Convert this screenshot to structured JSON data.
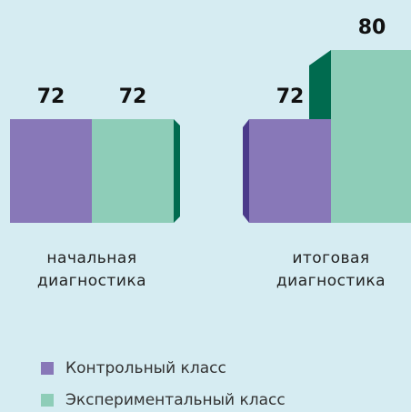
{
  "chart_data": {
    "type": "bar",
    "categories": [
      "начальная диагностика",
      "итоговая диагностика"
    ],
    "series": [
      {
        "name": "Контрольный класс",
        "color": "#8878b8",
        "values": [
          72,
          72
        ]
      },
      {
        "name": "Экспериментальный класс",
        "color": "#8ecdb8",
        "values": [
          72,
          80
        ]
      }
    ],
    "ylim": [
      60,
      84
    ]
  }
}
